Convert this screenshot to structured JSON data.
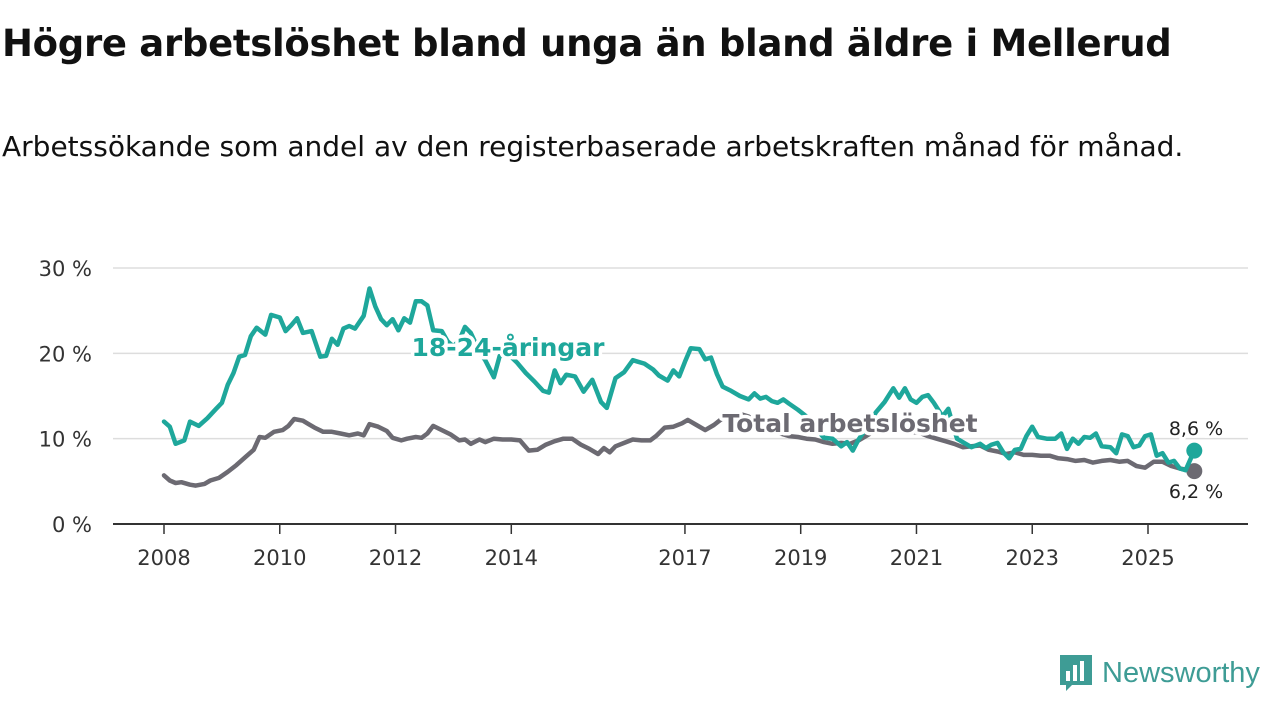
{
  "title": "Högre arbetslöshet bland unga än bland äldre i Mellerud",
  "subtitle": "Arbetssökande som andel av den registerbaserade arbetskraften månad för månad.",
  "brand": {
    "name": "Newsworthy"
  },
  "colors": {
    "youth": "#1ea79b",
    "total": "#6c6a72",
    "grid": "#dddddd",
    "axis": "#333333"
  },
  "chart_data": {
    "type": "line",
    "title": "Högre arbetslöshet bland unga än bland äldre i Mellerud",
    "subtitle": "Arbetssökande som andel av den registerbaserade arbetskraften månad för månad.",
    "xlabel": "",
    "ylabel": "",
    "ylim": [
      0,
      30
    ],
    "xlim": [
      2008,
      2026.9
    ],
    "grid": true,
    "y_ticks": [
      {
        "value": 0,
        "label": "0 %"
      },
      {
        "value": 10,
        "label": "10 %"
      },
      {
        "value": 20,
        "label": "20 %"
      },
      {
        "value": 30,
        "label": "30 %"
      }
    ],
    "x_ticks": [
      {
        "value": 2008,
        "label": "2008"
      },
      {
        "value": 2010,
        "label": "2010"
      },
      {
        "value": 2012,
        "label": "2012"
      },
      {
        "value": 2014,
        "label": "2014"
      },
      {
        "value": 2017,
        "label": "2017"
      },
      {
        "value": 2019,
        "label": "2019"
      },
      {
        "value": 2021,
        "label": "2021"
      },
      {
        "value": 2023,
        "label": "2023"
      },
      {
        "value": 2025,
        "label": "2025"
      }
    ],
    "series": [
      {
        "name": "18-24-åringar",
        "color": "#1ea79b",
        "end_value_label": "8,6 %",
        "points": [
          [
            2008.0,
            12.0
          ],
          [
            2008.1,
            11.4
          ],
          [
            2008.2,
            9.4
          ],
          [
            2008.35,
            9.8
          ],
          [
            2008.45,
            12.0
          ],
          [
            2008.6,
            11.5
          ],
          [
            2008.75,
            12.4
          ],
          [
            2008.9,
            13.5
          ],
          [
            2009.0,
            14.2
          ],
          [
            2009.1,
            16.3
          ],
          [
            2009.2,
            17.7
          ],
          [
            2009.3,
            19.6
          ],
          [
            2009.4,
            19.8
          ],
          [
            2009.5,
            22.0
          ],
          [
            2009.6,
            23.0
          ],
          [
            2009.75,
            22.2
          ],
          [
            2009.85,
            24.5
          ],
          [
            2010.0,
            24.2
          ],
          [
            2010.1,
            22.6
          ],
          [
            2010.2,
            23.3
          ],
          [
            2010.3,
            24.1
          ],
          [
            2010.4,
            22.4
          ],
          [
            2010.55,
            22.6
          ],
          [
            2010.7,
            19.6
          ],
          [
            2010.8,
            19.7
          ],
          [
            2010.9,
            21.7
          ],
          [
            2011.0,
            21.0
          ],
          [
            2011.1,
            22.9
          ],
          [
            2011.2,
            23.2
          ],
          [
            2011.3,
            22.9
          ],
          [
            2011.45,
            24.4
          ],
          [
            2011.55,
            27.6
          ],
          [
            2011.65,
            25.5
          ],
          [
            2011.75,
            24.0
          ],
          [
            2011.85,
            23.3
          ],
          [
            2011.95,
            24.0
          ],
          [
            2012.05,
            22.7
          ],
          [
            2012.15,
            24.1
          ],
          [
            2012.25,
            23.6
          ],
          [
            2012.35,
            26.1
          ],
          [
            2012.45,
            26.1
          ],
          [
            2012.55,
            25.6
          ],
          [
            2012.65,
            22.7
          ],
          [
            2012.8,
            22.6
          ],
          [
            2012.9,
            21.4
          ],
          [
            2013.0,
            20.8
          ],
          [
            2013.1,
            21.5
          ],
          [
            2013.2,
            23.1
          ],
          [
            2013.3,
            22.4
          ],
          [
            2013.45,
            20.2
          ],
          [
            2013.55,
            19.2
          ],
          [
            2013.7,
            17.2
          ],
          [
            2013.8,
            19.7
          ],
          [
            2013.95,
            19.9
          ],
          [
            2014.1,
            18.9
          ],
          [
            2014.25,
            17.7
          ],
          [
            2014.4,
            16.7
          ],
          [
            2014.55,
            15.6
          ],
          [
            2014.65,
            15.4
          ],
          [
            2014.75,
            18.0
          ],
          [
            2014.85,
            16.5
          ],
          [
            2014.95,
            17.5
          ],
          [
            2015.1,
            17.3
          ],
          [
            2015.25,
            15.5
          ],
          [
            2015.4,
            16.9
          ],
          [
            2015.55,
            14.3
          ],
          [
            2015.65,
            13.6
          ],
          [
            2015.8,
            17.1
          ],
          [
            2015.95,
            17.8
          ],
          [
            2016.1,
            19.2
          ],
          [
            2016.3,
            18.8
          ],
          [
            2016.45,
            18.1
          ],
          [
            2016.55,
            17.4
          ],
          [
            2016.7,
            16.8
          ],
          [
            2016.8,
            18.0
          ],
          [
            2016.9,
            17.3
          ],
          [
            2017.0,
            19.0
          ],
          [
            2017.1,
            20.6
          ],
          [
            2017.25,
            20.5
          ],
          [
            2017.35,
            19.3
          ],
          [
            2017.45,
            19.5
          ],
          [
            2017.55,
            17.6
          ],
          [
            2017.65,
            16.1
          ],
          [
            2017.8,
            15.6
          ],
          [
            2017.95,
            15.0
          ],
          [
            2018.1,
            14.6
          ],
          [
            2018.2,
            15.3
          ],
          [
            2018.3,
            14.7
          ],
          [
            2018.4,
            14.9
          ],
          [
            2018.5,
            14.4
          ],
          [
            2018.6,
            14.2
          ],
          [
            2018.7,
            14.6
          ],
          [
            2018.8,
            14.1
          ],
          [
            2018.95,
            13.4
          ],
          [
            2019.1,
            12.6
          ],
          [
            2019.25,
            11.3
          ],
          [
            2019.4,
            10.1
          ],
          [
            2019.55,
            10.0
          ],
          [
            2019.7,
            9.1
          ],
          [
            2019.8,
            9.6
          ],
          [
            2019.9,
            8.6
          ],
          [
            2020.0,
            9.9
          ],
          [
            2020.15,
            11.4
          ],
          [
            2020.3,
            13.1
          ],
          [
            2020.45,
            14.3
          ],
          [
            2020.6,
            15.9
          ],
          [
            2020.7,
            14.8
          ],
          [
            2020.8,
            15.9
          ],
          [
            2020.9,
            14.6
          ],
          [
            2021.0,
            14.2
          ],
          [
            2021.1,
            14.9
          ],
          [
            2021.2,
            15.1
          ],
          [
            2021.3,
            14.2
          ],
          [
            2021.45,
            12.6
          ],
          [
            2021.55,
            13.5
          ],
          [
            2021.7,
            10.0
          ],
          [
            2021.85,
            9.4
          ],
          [
            2021.95,
            9.0
          ],
          [
            2022.1,
            9.4
          ],
          [
            2022.2,
            8.9
          ],
          [
            2022.3,
            9.3
          ],
          [
            2022.4,
            9.5
          ],
          [
            2022.5,
            8.4
          ],
          [
            2022.6,
            7.7
          ],
          [
            2022.7,
            8.7
          ],
          [
            2022.8,
            8.8
          ],
          [
            2022.9,
            10.3
          ],
          [
            2023.0,
            11.4
          ],
          [
            2023.1,
            10.2
          ],
          [
            2023.25,
            10.0
          ],
          [
            2023.4,
            10.0
          ],
          [
            2023.5,
            10.6
          ],
          [
            2023.6,
            8.8
          ],
          [
            2023.7,
            10.0
          ],
          [
            2023.8,
            9.4
          ],
          [
            2023.9,
            10.2
          ],
          [
            2024.0,
            10.1
          ],
          [
            2024.1,
            10.6
          ],
          [
            2024.2,
            9.1
          ],
          [
            2024.35,
            9.0
          ],
          [
            2024.45,
            8.3
          ],
          [
            2024.55,
            10.5
          ],
          [
            2024.65,
            10.3
          ],
          [
            2024.75,
            9.0
          ],
          [
            2024.85,
            9.2
          ],
          [
            2024.95,
            10.3
          ],
          [
            2025.05,
            10.5
          ],
          [
            2025.15,
            8.0
          ],
          [
            2025.25,
            8.3
          ],
          [
            2025.35,
            7.2
          ],
          [
            2025.45,
            7.4
          ],
          [
            2025.55,
            6.5
          ],
          [
            2025.65,
            6.3
          ],
          [
            2025.8,
            8.6
          ]
        ]
      },
      {
        "name": "Total arbetslöshet",
        "color": "#6c6a72",
        "end_value_label": "6,2 %",
        "points": [
          [
            2008.0,
            5.7
          ],
          [
            2008.1,
            5.1
          ],
          [
            2008.2,
            4.8
          ],
          [
            2008.3,
            4.9
          ],
          [
            2008.45,
            4.6
          ],
          [
            2008.55,
            4.5
          ],
          [
            2008.7,
            4.7
          ],
          [
            2008.8,
            5.1
          ],
          [
            2008.95,
            5.4
          ],
          [
            2009.1,
            6.1
          ],
          [
            2009.25,
            6.9
          ],
          [
            2009.4,
            7.8
          ],
          [
            2009.55,
            8.7
          ],
          [
            2009.65,
            10.2
          ],
          [
            2009.75,
            10.1
          ],
          [
            2009.9,
            10.8
          ],
          [
            2010.05,
            11.0
          ],
          [
            2010.15,
            11.5
          ],
          [
            2010.25,
            12.3
          ],
          [
            2010.4,
            12.1
          ],
          [
            2010.5,
            11.7
          ],
          [
            2010.6,
            11.3
          ],
          [
            2010.75,
            10.8
          ],
          [
            2010.9,
            10.8
          ],
          [
            2011.05,
            10.6
          ],
          [
            2011.2,
            10.4
          ],
          [
            2011.35,
            10.6
          ],
          [
            2011.45,
            10.4
          ],
          [
            2011.55,
            11.7
          ],
          [
            2011.7,
            11.4
          ],
          [
            2011.85,
            10.9
          ],
          [
            2011.95,
            10.1
          ],
          [
            2012.1,
            9.8
          ],
          [
            2012.2,
            10.0
          ],
          [
            2012.35,
            10.2
          ],
          [
            2012.45,
            10.1
          ],
          [
            2012.55,
            10.6
          ],
          [
            2012.65,
            11.5
          ],
          [
            2012.8,
            11.0
          ],
          [
            2012.95,
            10.5
          ],
          [
            2013.1,
            9.8
          ],
          [
            2013.2,
            9.9
          ],
          [
            2013.3,
            9.4
          ],
          [
            2013.45,
            9.9
          ],
          [
            2013.55,
            9.6
          ],
          [
            2013.7,
            10.0
          ],
          [
            2013.85,
            9.9
          ],
          [
            2014.0,
            9.9
          ],
          [
            2014.15,
            9.8
          ],
          [
            2014.3,
            8.6
          ],
          [
            2014.45,
            8.7
          ],
          [
            2014.6,
            9.3
          ],
          [
            2014.75,
            9.7
          ],
          [
            2014.9,
            10.0
          ],
          [
            2015.05,
            10.0
          ],
          [
            2015.2,
            9.3
          ],
          [
            2015.35,
            8.8
          ],
          [
            2015.5,
            8.2
          ],
          [
            2015.6,
            8.9
          ],
          [
            2015.7,
            8.4
          ],
          [
            2015.8,
            9.1
          ],
          [
            2015.95,
            9.5
          ],
          [
            2016.1,
            9.9
          ],
          [
            2016.25,
            9.8
          ],
          [
            2016.4,
            9.8
          ],
          [
            2016.5,
            10.3
          ],
          [
            2016.65,
            11.3
          ],
          [
            2016.8,
            11.4
          ],
          [
            2016.95,
            11.8
          ],
          [
            2017.05,
            12.2
          ],
          [
            2017.2,
            11.6
          ],
          [
            2017.35,
            11.0
          ],
          [
            2017.5,
            11.6
          ],
          [
            2017.65,
            12.4
          ],
          [
            2017.8,
            12.8
          ],
          [
            2017.95,
            12.9
          ],
          [
            2018.1,
            12.6
          ],
          [
            2018.2,
            11.8
          ],
          [
            2018.35,
            11.3
          ],
          [
            2018.5,
            11.0
          ],
          [
            2018.65,
            10.6
          ],
          [
            2018.8,
            10.3
          ],
          [
            2018.95,
            10.2
          ],
          [
            2019.1,
            10.0
          ],
          [
            2019.25,
            9.9
          ],
          [
            2019.4,
            9.6
          ],
          [
            2019.55,
            9.4
          ],
          [
            2019.7,
            9.5
          ],
          [
            2019.85,
            9.4
          ],
          [
            2020.0,
            9.8
          ],
          [
            2020.15,
            10.4
          ],
          [
            2020.3,
            11.0
          ],
          [
            2020.45,
            11.3
          ],
          [
            2020.6,
            11.1
          ],
          [
            2020.75,
            11.2
          ],
          [
            2020.9,
            10.8
          ],
          [
            2021.05,
            10.7
          ],
          [
            2021.2,
            10.3
          ],
          [
            2021.35,
            10.0
          ],
          [
            2021.5,
            9.7
          ],
          [
            2021.65,
            9.4
          ],
          [
            2021.8,
            9.0
          ],
          [
            2021.95,
            9.1
          ],
          [
            2022.1,
            9.2
          ],
          [
            2022.25,
            8.7
          ],
          [
            2022.4,
            8.5
          ],
          [
            2022.55,
            8.2
          ],
          [
            2022.7,
            8.4
          ],
          [
            2022.85,
            8.1
          ],
          [
            2023.0,
            8.1
          ],
          [
            2023.15,
            8.0
          ],
          [
            2023.3,
            8.0
          ],
          [
            2023.45,
            7.7
          ],
          [
            2023.6,
            7.6
          ],
          [
            2023.75,
            7.4
          ],
          [
            2023.9,
            7.5
          ],
          [
            2024.05,
            7.2
          ],
          [
            2024.2,
            7.4
          ],
          [
            2024.35,
            7.5
          ],
          [
            2024.5,
            7.3
          ],
          [
            2024.65,
            7.4
          ],
          [
            2024.8,
            6.8
          ],
          [
            2024.95,
            6.6
          ],
          [
            2025.1,
            7.3
          ],
          [
            2025.25,
            7.3
          ],
          [
            2025.4,
            6.8
          ],
          [
            2025.55,
            6.5
          ],
          [
            2025.7,
            6.3
          ],
          [
            2025.8,
            6.2
          ]
        ]
      }
    ]
  }
}
